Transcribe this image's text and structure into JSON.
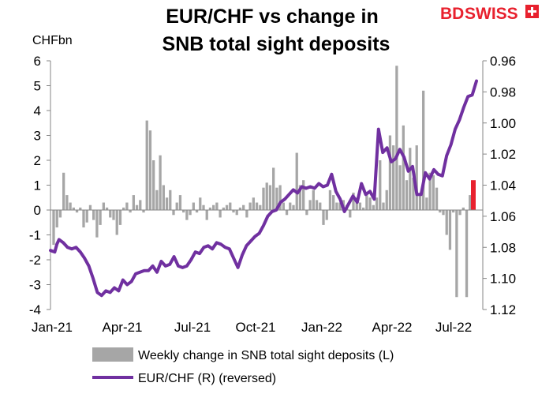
{
  "title_line1": "EUR/CHF vs change in",
  "title_line2": "SNB total sight deposits",
  "logo": {
    "text_bd": "BD",
    "text_swiss": "SWISS",
    "color": "#e8212e"
  },
  "chart_data": {
    "type": "bar+line",
    "left_axis": {
      "unit_label": "CHFbn",
      "min": -4,
      "max": 6,
      "ticks": [
        6,
        5,
        4,
        3,
        2,
        1,
        0,
        -1,
        -2,
        -3,
        -4
      ]
    },
    "right_axis": {
      "min": 0.96,
      "max": 1.12,
      "reversed": true,
      "ticks": [
        "0.96",
        "0.98",
        "1.00",
        "1.02",
        "1.04",
        "1.06",
        "1.08",
        "1.10",
        "1.12"
      ]
    },
    "x_ticks": [
      "Jan-21",
      "Apr-21",
      "Jul-21",
      "Oct-21",
      "Jan-22",
      "Apr-22",
      "Jul-22"
    ],
    "bar_color": "#a6a6a6",
    "highlight_color": "#e8212e",
    "line_color": "#7030a0",
    "series": [
      {
        "name": "Weekly change in SNB total sight deposits (L)",
        "axis": "left",
        "values": [
          -1.4,
          -0.7,
          -0.3,
          1.5,
          0.6,
          0.3,
          0.1,
          -0.1,
          0.1,
          -0.7,
          -0.5,
          0.2,
          -0.4,
          -1.1,
          -0.6,
          0.3,
          0.1,
          -0.3,
          -0.4,
          -1.0,
          -0.6,
          0.1,
          0.3,
          -0.1,
          0.6,
          0.2,
          0.4,
          -0.1,
          3.6,
          3.2,
          2.0,
          0.8,
          2.2,
          1.0,
          0.5,
          0.8,
          -0.2,
          0.3,
          0.6,
          -0.1,
          -0.4,
          -0.2,
          0.3,
          -0.1,
          0.5,
          0.2,
          -0.4,
          0.1,
          0.2,
          0.3,
          -0.3,
          0.1,
          0.2,
          0.3,
          -0.1,
          -0.2,
          0.1,
          0.2,
          -0.3,
          0.3,
          0.5,
          0.3,
          0.2,
          0.9,
          1.1,
          1.0,
          1.7,
          0.9,
          1.0,
          0.3,
          -0.2,
          0.3,
          0.2,
          2.3,
          1.0,
          1.2,
          -0.2,
          0.4,
          0.8,
          0.4,
          0.3,
          -0.6,
          -0.4,
          0.8,
          0.6,
          0.3,
          0.3,
          0.4,
          0.2,
          -0.3,
          0.7,
          0.5,
          0.3,
          0.1,
          0.6,
          0.5,
          0.2,
          0.5,
          2.0,
          0.3,
          0.8,
          3.0,
          2.6,
          5.8,
          1.8,
          3.4,
          1.2,
          2.5,
          1.3,
          2.6,
          0.6,
          4.8,
          0.5,
          1.5,
          1.4,
          0.9,
          -0.1,
          -0.2,
          -1.0,
          -1.6,
          -0.1,
          -3.5,
          -0.2,
          0.1,
          -3.5,
          0.6,
          1.2
        ],
        "last_value_highlighted": true
      },
      {
        "name": "EUR/CHF (R) (reversed)",
        "axis": "right",
        "x_fractions": [
          0.0,
          0.01,
          0.015,
          0.02,
          0.03,
          0.04,
          0.05,
          0.06,
          0.07,
          0.08,
          0.09,
          0.1,
          0.11,
          0.12,
          0.13,
          0.14,
          0.15,
          0.16,
          0.17,
          0.18,
          0.19,
          0.2,
          0.21,
          0.22,
          0.23,
          0.24,
          0.25,
          0.26,
          0.27,
          0.28,
          0.29,
          0.3,
          0.31,
          0.32,
          0.33,
          0.34,
          0.35,
          0.36,
          0.37,
          0.38,
          0.39,
          0.4,
          0.41,
          0.42,
          0.43,
          0.44,
          0.45,
          0.46,
          0.47,
          0.48,
          0.49,
          0.5,
          0.51,
          0.52,
          0.53,
          0.54,
          0.55,
          0.56,
          0.57,
          0.58,
          0.59,
          0.6,
          0.61,
          0.62,
          0.63,
          0.64,
          0.65,
          0.66,
          0.67,
          0.68,
          0.69,
          0.7,
          0.71,
          0.72,
          0.73,
          0.74,
          0.75,
          0.76,
          0.77,
          0.78,
          0.79,
          0.8,
          0.81,
          0.82,
          0.83,
          0.84,
          0.85,
          0.86,
          0.87,
          0.88,
          0.89,
          0.9,
          0.91,
          0.92,
          0.93,
          0.94,
          0.95,
          0.96,
          0.97,
          0.98,
          0.99,
          1.0
        ],
        "values": [
          1.082,
          1.083,
          1.078,
          1.075,
          1.077,
          1.08,
          1.081,
          1.08,
          1.083,
          1.087,
          1.092,
          1.1,
          1.109,
          1.111,
          1.108,
          1.109,
          1.106,
          1.108,
          1.101,
          1.104,
          1.102,
          1.097,
          1.096,
          1.095,
          1.095,
          1.092,
          1.096,
          1.089,
          1.092,
          1.091,
          1.086,
          1.092,
          1.093,
          1.092,
          1.088,
          1.083,
          1.084,
          1.08,
          1.079,
          1.081,
          1.077,
          1.078,
          1.08,
          1.081,
          1.087,
          1.093,
          1.085,
          1.079,
          1.076,
          1.073,
          1.071,
          1.066,
          1.06,
          1.057,
          1.056,
          1.051,
          1.049,
          1.046,
          1.043,
          1.045,
          1.041,
          1.042,
          1.041,
          1.042,
          1.039,
          1.041,
          1.04,
          1.033,
          1.044,
          1.049,
          1.057,
          1.052,
          1.047,
          1.051,
          1.039,
          1.046,
          1.044,
          1.049,
          1.004,
          1.019,
          1.016,
          1.025,
          1.023,
          1.017,
          1.022,
          1.031,
          1.028,
          1.046,
          1.046,
          1.032,
          1.036,
          1.03,
          1.033,
          1.034,
          1.021,
          1.014,
          1.004,
          0.998,
          0.99,
          0.983,
          0.982,
          0.973
        ]
      }
    ]
  }
}
